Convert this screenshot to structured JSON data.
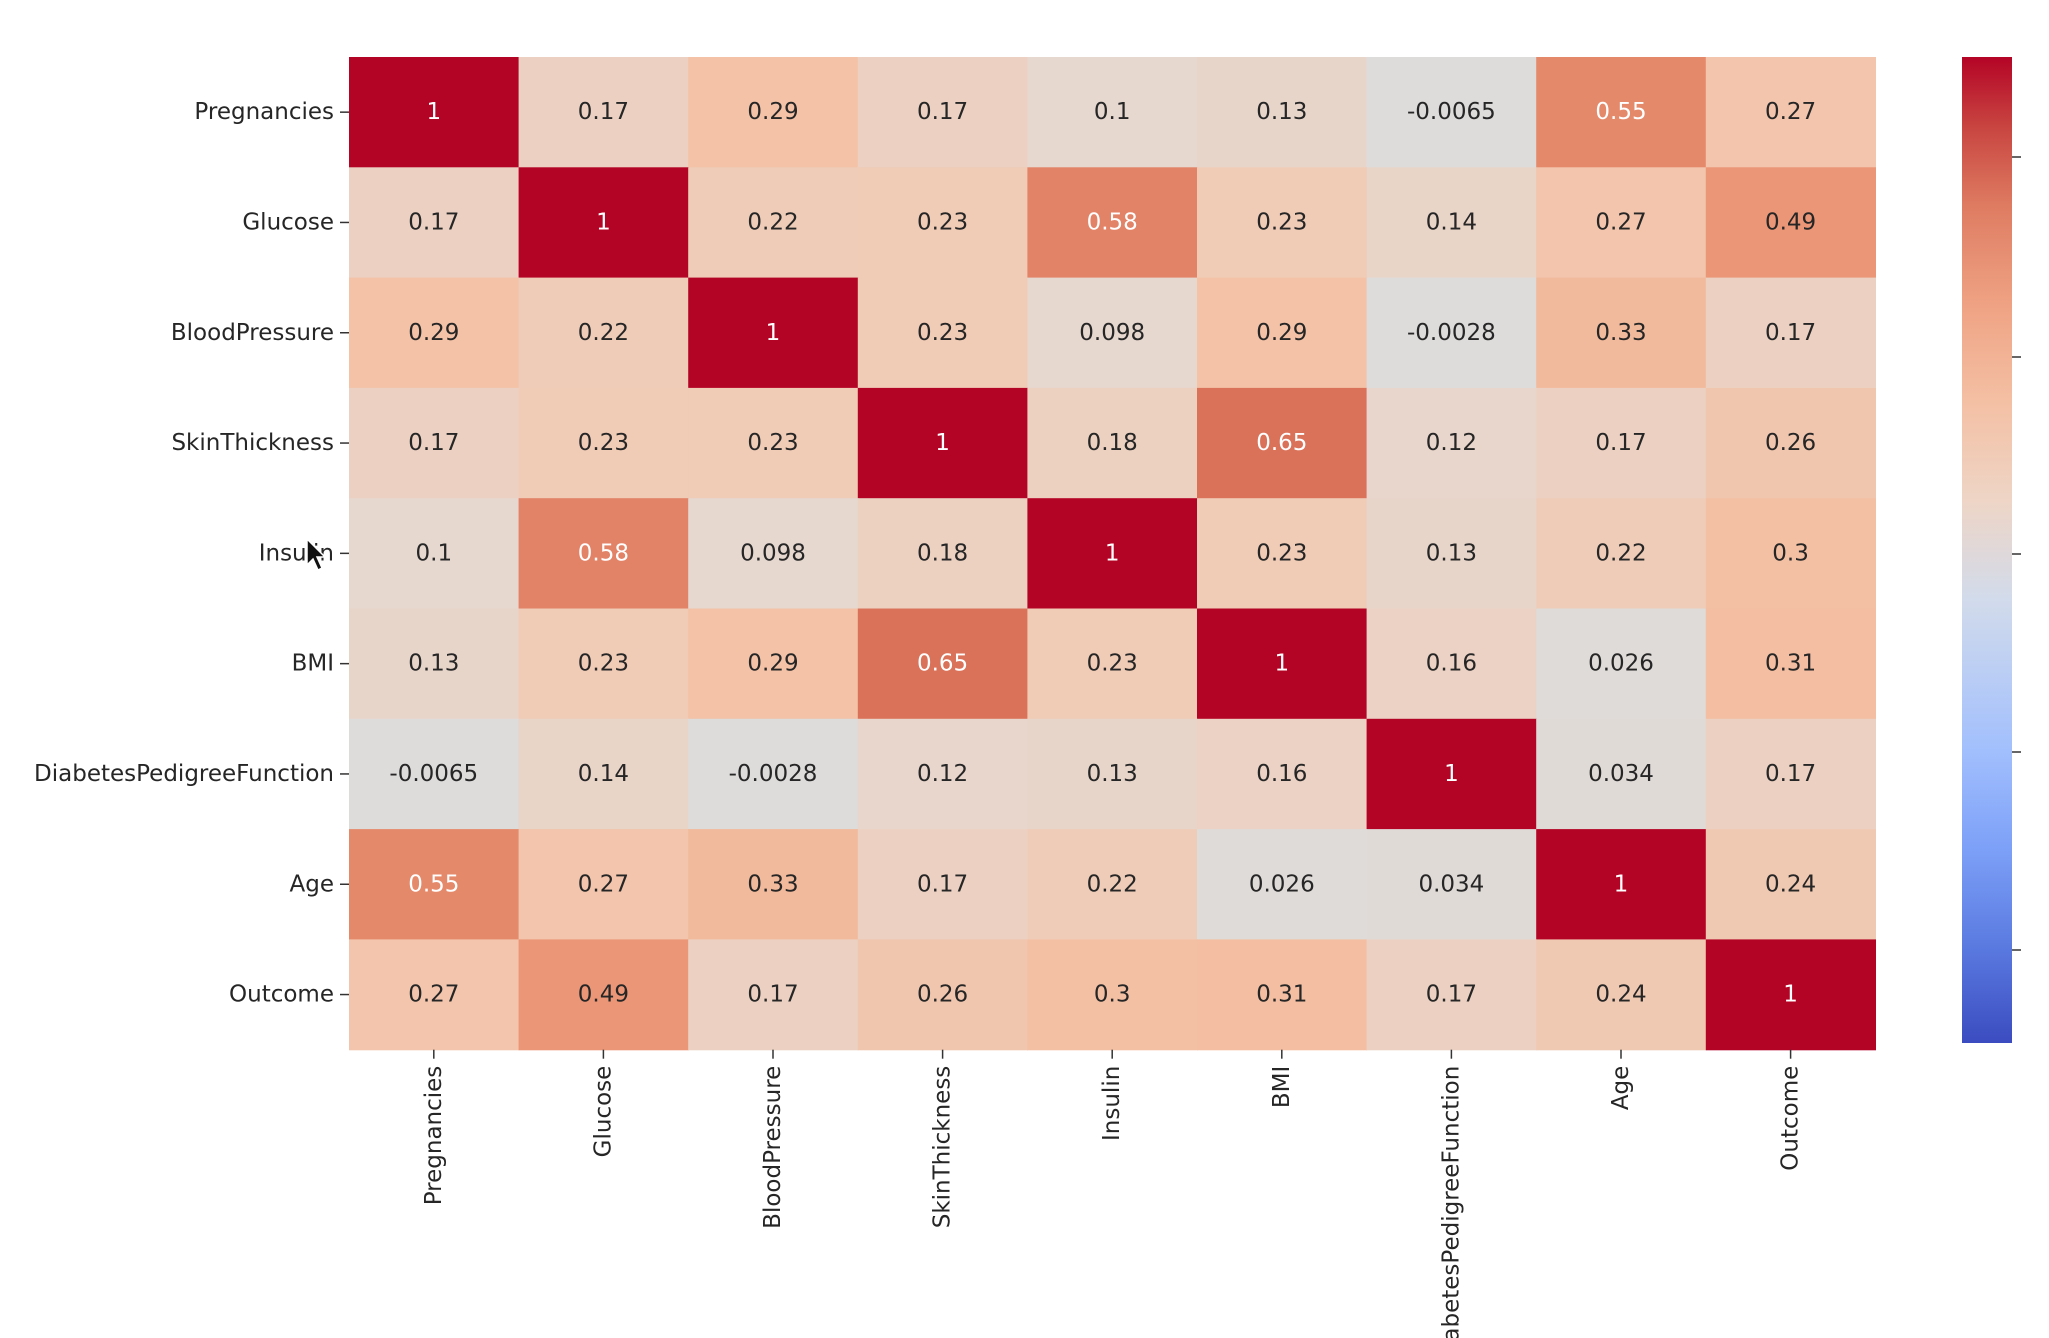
{
  "chart_data": {
    "type": "heatmap",
    "title": "",
    "xlabel": "",
    "ylabel": "",
    "colormap": "coolwarm",
    "vmin": -0.2,
    "vmax": 1.0,
    "row_labels": [
      "Pregnancies",
      "Glucose",
      "BloodPressure",
      "SkinThickness",
      "Insulin",
      "BMI",
      "DiabetesPedigreeFunction",
      "Age",
      "Outcome"
    ],
    "col_labels": [
      "Pregnancies",
      "Glucose",
      "BloodPressure",
      "SkinThickness",
      "Insulin",
      "BMI",
      "DiabetesPedigreeFunction",
      "Age",
      "Outcome"
    ],
    "values": [
      [
        1,
        0.17,
        0.29,
        0.17,
        0.1,
        0.13,
        -0.0065,
        0.55,
        0.27
      ],
      [
        0.17,
        1,
        0.22,
        0.23,
        0.58,
        0.23,
        0.14,
        0.27,
        0.49
      ],
      [
        0.29,
        0.22,
        1,
        0.23,
        0.098,
        0.29,
        -0.0028,
        0.33,
        0.17
      ],
      [
        0.17,
        0.23,
        0.23,
        1,
        0.18,
        0.65,
        0.12,
        0.17,
        0.26
      ],
      [
        0.1,
        0.58,
        0.098,
        0.18,
        1,
        0.23,
        0.13,
        0.22,
        0.3
      ],
      [
        0.13,
        0.23,
        0.29,
        0.65,
        0.23,
        1,
        0.16,
        0.026,
        0.31
      ],
      [
        -0.0065,
        0.14,
        -0.0028,
        0.12,
        0.13,
        0.16,
        1,
        0.034,
        0.17
      ],
      [
        0.55,
        0.27,
        0.33,
        0.17,
        0.22,
        0.026,
        0.034,
        1,
        0.24
      ],
      [
        0.27,
        0.49,
        0.17,
        0.26,
        0.3,
        0.31,
        0.17,
        0.24,
        1
      ]
    ],
    "cell_labels": [
      [
        "1",
        "0.17",
        "0.29",
        "0.17",
        "0.1",
        "0.13",
        "-0.0065",
        "0.55",
        "0.27"
      ],
      [
        "0.17",
        "1",
        "0.22",
        "0.23",
        "0.58",
        "0.23",
        "0.14",
        "0.27",
        "0.49"
      ],
      [
        "0.29",
        "0.22",
        "1",
        "0.23",
        "0.098",
        "0.29",
        "-0.0028",
        "0.33",
        "0.17"
      ],
      [
        "0.17",
        "0.23",
        "0.23",
        "1",
        "0.18",
        "0.65",
        "0.12",
        "0.17",
        "0.26"
      ],
      [
        "0.1",
        "0.58",
        "0.098",
        "0.18",
        "1",
        "0.23",
        "0.13",
        "0.22",
        "0.3"
      ],
      [
        "0.13",
        "0.23",
        "0.29",
        "0.65",
        "0.23",
        "1",
        "0.16",
        "0.026",
        "0.31"
      ],
      [
        "-0.0065",
        "0.14",
        "-0.0028",
        "0.12",
        "0.13",
        "0.16",
        "1",
        "0.034",
        "0.17"
      ],
      [
        "0.55",
        "0.27",
        "0.33",
        "0.17",
        "0.22",
        "0.026",
        "0.034",
        "1",
        "0.24"
      ],
      [
        "0.27",
        "0.49",
        "0.17",
        "0.26",
        "0.3",
        "0.31",
        "0.17",
        "0.24",
        "1"
      ]
    ],
    "colorbar": {
      "ticks_visible": 5,
      "tick_labels_cropped": true
    },
    "colors": {
      "max": "#b40426",
      "mid": "#dddddd",
      "min": "#3b4cc0"
    }
  }
}
